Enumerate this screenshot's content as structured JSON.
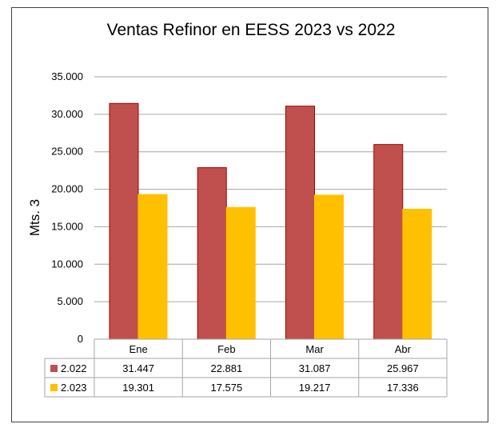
{
  "chart_data": {
    "type": "bar",
    "title": "Ventas Refinor en EESS 2023 vs 2022",
    "ylabel": "Mts. 3",
    "xlabel": "",
    "categories": [
      "Ene",
      "Feb",
      "Mar",
      "Abr"
    ],
    "ylim": [
      0,
      35000
    ],
    "yticks": [
      0,
      5000,
      10000,
      15000,
      20000,
      25000,
      30000,
      35000
    ],
    "ytick_labels": [
      "0",
      "5.000",
      "10.000",
      "15.000",
      "20.000",
      "25.000",
      "30.000",
      "35.000"
    ],
    "grid": true,
    "legend": "data-table",
    "series": [
      {
        "name": "2.022",
        "color": "#c0504d",
        "border": "#a00000",
        "values": [
          31447,
          22881,
          31087,
          25967
        ],
        "labels": [
          "31.447",
          "22.881",
          "31.087",
          "25.967"
        ]
      },
      {
        "name": "2.023",
        "color": "#ffc000",
        "border": "#ffc000",
        "values": [
          19301,
          17575,
          19217,
          17336
        ],
        "labels": [
          "19.301",
          "17.575",
          "19.217",
          "17.336"
        ]
      }
    ]
  }
}
